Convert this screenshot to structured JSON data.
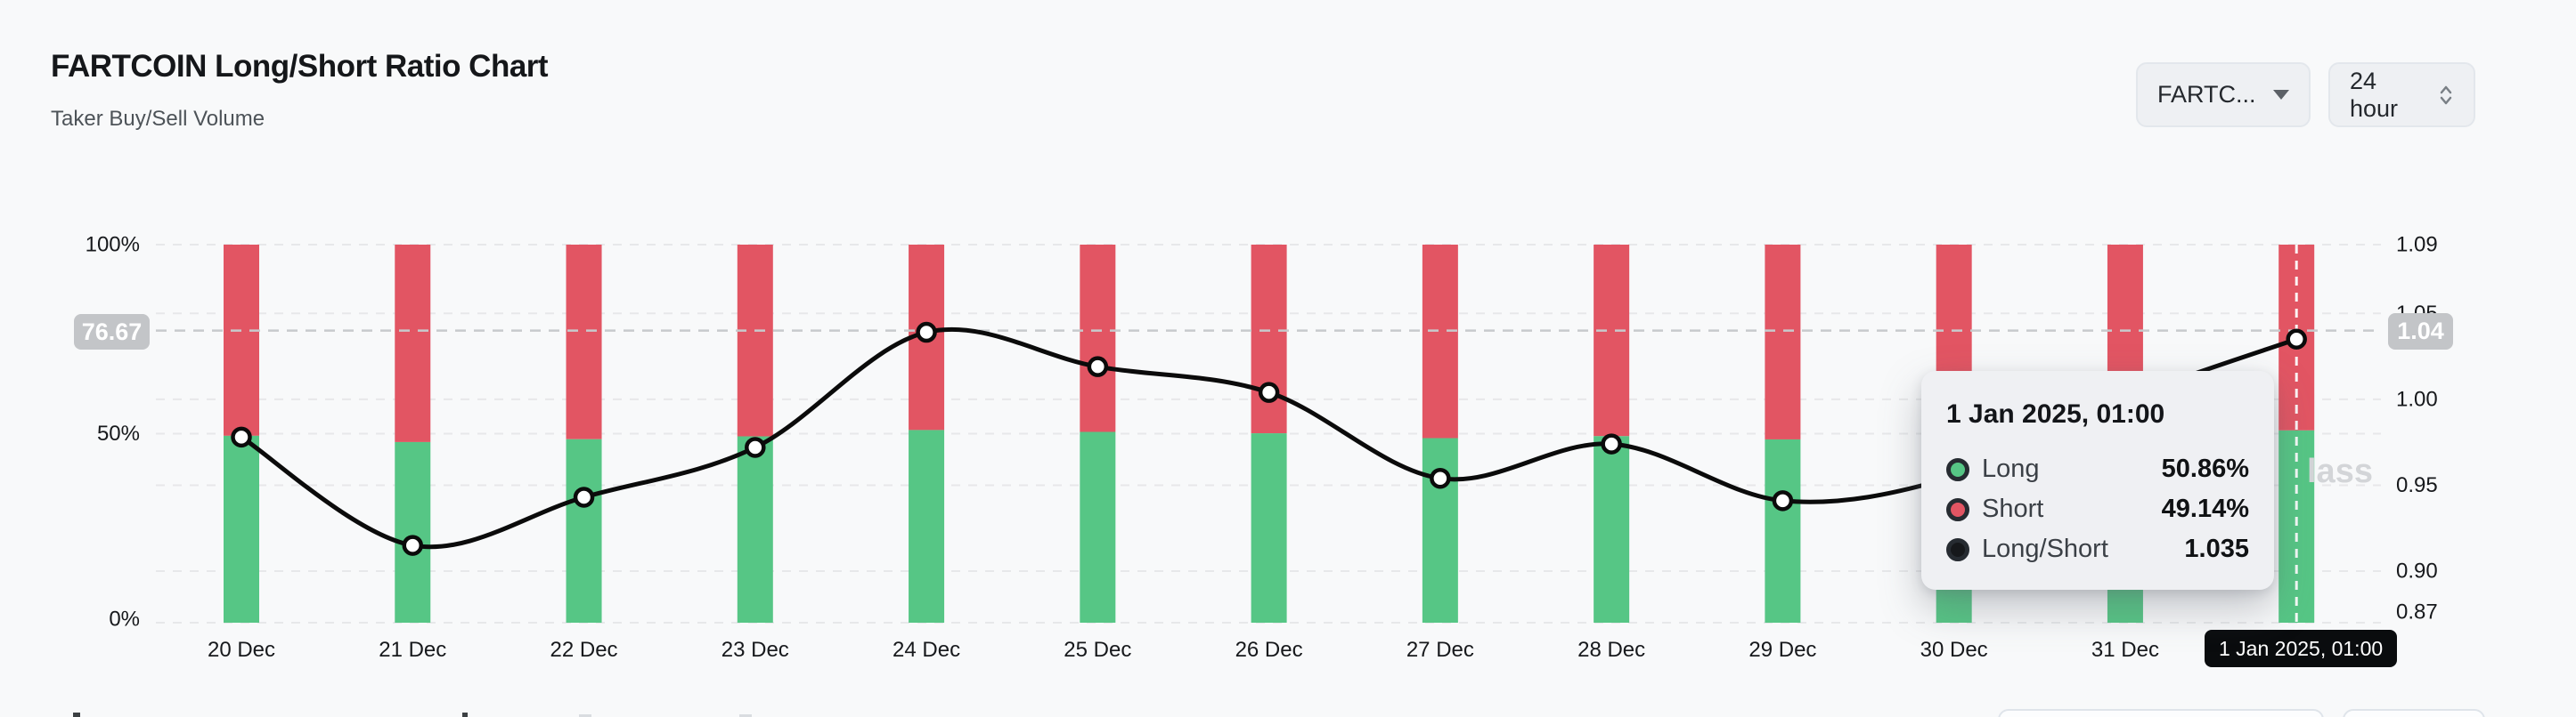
{
  "header": {
    "title": "FARTCOIN Long/Short Ratio Chart",
    "subtitle": "Taker Buy/Sell Volume"
  },
  "controls": {
    "symbol": {
      "value": "FARTC...",
      "icon": "caret-down"
    },
    "interval": {
      "value": "24 hour",
      "icon": "up-down-chevrons"
    }
  },
  "colors": {
    "long_green": "#56c685",
    "short_red": "#e25563",
    "ratio_line": "#0b0b0b",
    "background": "#f8f9fa",
    "badge_gray": "#c3c5c8",
    "pill_black": "#0a0c0e"
  },
  "chart_data": {
    "type": "bar",
    "subtype": "stacked-percent-bars-with-ratio-line",
    "title": "FARTCOIN Long/Short Ratio Chart",
    "categories": [
      "20 Dec",
      "21 Dec",
      "22 Dec",
      "23 Dec",
      "24 Dec",
      "25 Dec",
      "26 Dec",
      "27 Dec",
      "28 Dec",
      "29 Dec",
      "30 Dec",
      "31 Dec",
      "1 Jan"
    ],
    "series": [
      {
        "name": "Long",
        "type": "bar",
        "stacked": true,
        "axis": "left",
        "unit": "%",
        "color": "#56c685",
        "values": [
          49.44,
          47.78,
          48.53,
          49.29,
          50.96,
          50.47,
          50.1,
          48.82,
          49.34,
          48.48,
          48.85,
          50.0,
          50.86
        ]
      },
      {
        "name": "Short",
        "type": "bar",
        "stacked": true,
        "axis": "left",
        "unit": "%",
        "color": "#e25563",
        "values": [
          50.56,
          52.22,
          51.47,
          50.71,
          49.04,
          49.53,
          49.9,
          51.18,
          50.66,
          51.52,
          51.15,
          50.0,
          49.14
        ]
      },
      {
        "name": "Long/Short",
        "type": "line",
        "axis": "right",
        "color": "#0b0b0b",
        "values": [
          0.978,
          0.915,
          0.943,
          0.972,
          1.039,
          1.019,
          1.004,
          0.954,
          0.974,
          0.941,
          0.955,
          1.0,
          1.035
        ]
      }
    ],
    "left_axis": {
      "range": [
        0,
        100
      ],
      "ticks": [
        {
          "label": "0%",
          "value": 0
        },
        {
          "label": "50%",
          "value": 50
        },
        {
          "label": "100%",
          "value": 100
        }
      ]
    },
    "right_axis": {
      "range": [
        0.87,
        1.09
      ],
      "ticks": [
        {
          "label": "1.09",
          "value": 1.09
        },
        {
          "label": "1.05",
          "value": 1.05
        },
        {
          "label": "1.00",
          "value": 1.0
        },
        {
          "label": "0.95",
          "value": 0.95
        },
        {
          "label": "0.90",
          "value": 0.9
        },
        {
          "label": "0.87",
          "value": 0.87
        }
      ]
    },
    "grid": "dashed-horizontal",
    "legend_position": "none",
    "crosshair": {
      "index": 12,
      "x_label": "1 Jan 2025, 01:00",
      "left_badge": "76.67",
      "right_badge": "1.04",
      "percent": 76.67,
      "ratio": 1.04
    }
  },
  "tooltip": {
    "title": "1 Jan 2025, 01:00",
    "rows": [
      {
        "label": "Long",
        "value": "50.86%",
        "color": "#56c685"
      },
      {
        "label": "Short",
        "value": "49.14%",
        "color": "#e25563"
      },
      {
        "label": "Long/Short",
        "value": "1.035",
        "color": "#16181b"
      }
    ]
  },
  "watermark": {
    "text": "lass"
  }
}
